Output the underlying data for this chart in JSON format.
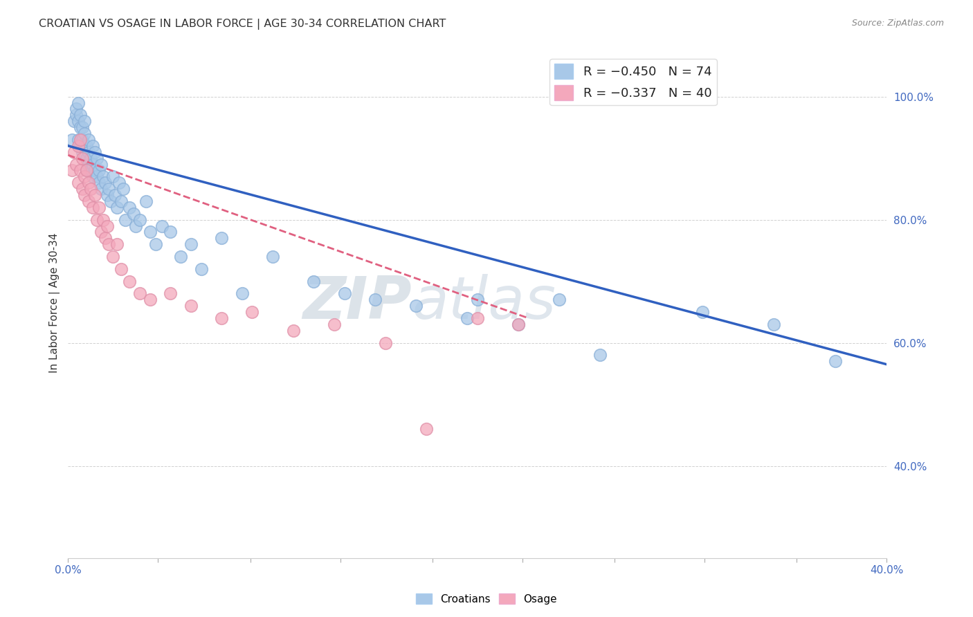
{
  "title": "CROATIAN VS OSAGE IN LABOR FORCE | AGE 30-34 CORRELATION CHART",
  "source": "Source: ZipAtlas.com",
  "ylabel": "In Labor Force | Age 30-34",
  "xlim": [
    0.0,
    0.4
  ],
  "ylim": [
    0.25,
    1.08
  ],
  "xtick_labels_bottom": [
    "0.0%",
    "",
    "",
    "",
    "",
    "",
    "",
    "",
    "",
    "40.0%"
  ],
  "xtick_values": [
    0.0,
    0.044,
    0.089,
    0.133,
    0.178,
    0.222,
    0.267,
    0.311,
    0.356,
    0.4
  ],
  "ytick_labels": [
    "40.0%",
    "60.0%",
    "80.0%",
    "100.0%"
  ],
  "ytick_values": [
    0.4,
    0.6,
    0.8,
    1.0
  ],
  "legend_blue_label": "R = −0.450   N = 74",
  "legend_pink_label": "R = −0.337   N = 40",
  "blue_color": "#A8C8E8",
  "pink_color": "#F4A8BC",
  "blue_line_color": "#3060C0",
  "pink_line_color": "#E06080",
  "watermark_zip": "ZIP",
  "watermark_atlas": "atlas",
  "blue_line_x": [
    0.0,
    0.4
  ],
  "blue_line_y": [
    0.92,
    0.565
  ],
  "pink_line_x": [
    0.0,
    0.225
  ],
  "pink_line_y": [
    0.905,
    0.64
  ],
  "blue_scatter_x": [
    0.002,
    0.003,
    0.004,
    0.004,
    0.005,
    0.005,
    0.005,
    0.006,
    0.006,
    0.006,
    0.007,
    0.007,
    0.007,
    0.008,
    0.008,
    0.008,
    0.009,
    0.009,
    0.009,
    0.01,
    0.01,
    0.01,
    0.011,
    0.011,
    0.012,
    0.012,
    0.012,
    0.013,
    0.013,
    0.014,
    0.014,
    0.015,
    0.015,
    0.016,
    0.016,
    0.017,
    0.018,
    0.019,
    0.02,
    0.021,
    0.022,
    0.023,
    0.024,
    0.025,
    0.026,
    0.027,
    0.028,
    0.03,
    0.032,
    0.033,
    0.035,
    0.038,
    0.04,
    0.043,
    0.046,
    0.05,
    0.055,
    0.06,
    0.065,
    0.075,
    0.085,
    0.1,
    0.12,
    0.135,
    0.15,
    0.17,
    0.195,
    0.2,
    0.22,
    0.24,
    0.26,
    0.31,
    0.345,
    0.375
  ],
  "blue_scatter_y": [
    0.93,
    0.96,
    0.97,
    0.98,
    0.93,
    0.96,
    0.99,
    0.95,
    0.97,
    0.92,
    0.93,
    0.91,
    0.95,
    0.94,
    0.92,
    0.96,
    0.9,
    0.92,
    0.88,
    0.91,
    0.89,
    0.93,
    0.9,
    0.88,
    0.89,
    0.92,
    0.87,
    0.88,
    0.91,
    0.87,
    0.9,
    0.86,
    0.88,
    0.85,
    0.89,
    0.87,
    0.86,
    0.84,
    0.85,
    0.83,
    0.87,
    0.84,
    0.82,
    0.86,
    0.83,
    0.85,
    0.8,
    0.82,
    0.81,
    0.79,
    0.8,
    0.83,
    0.78,
    0.76,
    0.79,
    0.78,
    0.74,
    0.76,
    0.72,
    0.77,
    0.68,
    0.74,
    0.7,
    0.68,
    0.67,
    0.66,
    0.64,
    0.67,
    0.63,
    0.67,
    0.58,
    0.65,
    0.63,
    0.57
  ],
  "pink_scatter_x": [
    0.002,
    0.003,
    0.004,
    0.005,
    0.005,
    0.006,
    0.006,
    0.007,
    0.007,
    0.008,
    0.008,
    0.009,
    0.01,
    0.01,
    0.011,
    0.012,
    0.013,
    0.014,
    0.015,
    0.016,
    0.017,
    0.018,
    0.019,
    0.02,
    0.022,
    0.024,
    0.026,
    0.03,
    0.035,
    0.04,
    0.05,
    0.06,
    0.075,
    0.09,
    0.11,
    0.13,
    0.155,
    0.175,
    0.2,
    0.22
  ],
  "pink_scatter_y": [
    0.88,
    0.91,
    0.89,
    0.92,
    0.86,
    0.93,
    0.88,
    0.9,
    0.85,
    0.87,
    0.84,
    0.88,
    0.86,
    0.83,
    0.85,
    0.82,
    0.84,
    0.8,
    0.82,
    0.78,
    0.8,
    0.77,
    0.79,
    0.76,
    0.74,
    0.76,
    0.72,
    0.7,
    0.68,
    0.67,
    0.68,
    0.66,
    0.64,
    0.65,
    0.62,
    0.63,
    0.6,
    0.46,
    0.64,
    0.63
  ],
  "figsize": [
    14.06,
    8.92
  ],
  "dpi": 100
}
